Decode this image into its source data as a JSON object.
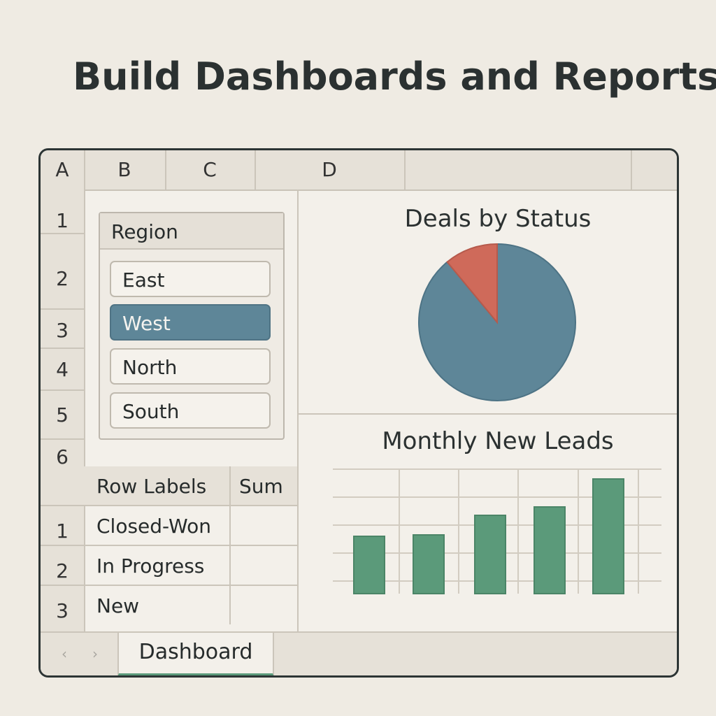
{
  "heading": "Build Dashboards and Reports",
  "columns": [
    "A",
    "B",
    "C",
    "D",
    ""
  ],
  "rows": [
    "1",
    "2",
    "3",
    "4",
    "5",
    "6"
  ],
  "slicer": {
    "title": "Region",
    "items": [
      {
        "label": "East",
        "selected": false
      },
      {
        "label": "West",
        "selected": true
      },
      {
        "label": "North",
        "selected": false
      },
      {
        "label": "South",
        "selected": false
      }
    ]
  },
  "pivot": {
    "headers": [
      "Row Labels",
      "Sum"
    ],
    "rows": [
      {
        "num": "1",
        "label": "Closed-Won"
      },
      {
        "num": "2",
        "label": "In Progress"
      },
      {
        "num": "3",
        "label": "New"
      }
    ]
  },
  "charts": {
    "pie": {
      "title": "Deals by Status",
      "chart_data": {
        "type": "pie",
        "title": "Deals by Status",
        "slices": [
          {
            "value": 89,
            "color": "#5e8698"
          },
          {
            "value": 11,
            "color": "#cf6a5a"
          }
        ]
      }
    },
    "bar": {
      "title": "Monthly New Leads",
      "chart_data": {
        "type": "bar",
        "title": "Monthly New Leads",
        "values": [
          41,
          42,
          56,
          62,
          82
        ],
        "ylim": [
          0,
          90
        ],
        "grid": true,
        "color": "#5b9a7a"
      }
    }
  },
  "tabs": {
    "prev_icon": "‹",
    "next_icon": "›",
    "active": "Dashboard"
  }
}
